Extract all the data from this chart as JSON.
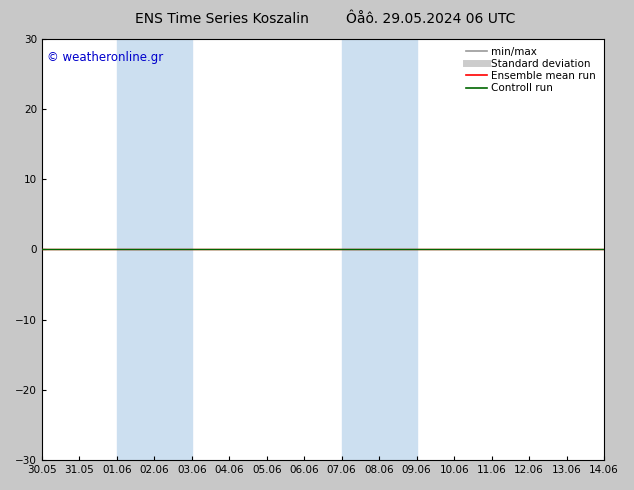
{
  "title_left": "ENS Time Series Koszalin",
  "title_right": "Ôåô. 29.05.2024 06 UTC",
  "watermark": "© weatheronline.gr",
  "watermark_color": "#0000cc",
  "ylim": [
    -30,
    30
  ],
  "yticks": [
    -30,
    -20,
    -10,
    0,
    10,
    20,
    30
  ],
  "x_labels": [
    "30.05",
    "31.05",
    "01.06",
    "02.06",
    "03.06",
    "04.06",
    "05.06",
    "06.06",
    "07.06",
    "08.06",
    "09.06",
    "10.06",
    "11.06",
    "12.06",
    "13.06",
    "14.06"
  ],
  "x_values": [
    0,
    1,
    2,
    3,
    4,
    5,
    6,
    7,
    8,
    9,
    10,
    11,
    12,
    13,
    14,
    15
  ],
  "shaded_regions": [
    {
      "xmin": 2,
      "xmax": 4,
      "color": "#ccdff0"
    },
    {
      "xmin": 8,
      "xmax": 10,
      "color": "#ccdff0"
    }
  ],
  "line_y": 0,
  "line_color_ensemble": "#ff0000",
  "line_color_control": "#006600",
  "fig_bg_color": "#c8c8c8",
  "plot_bg_color": "#ffffff",
  "legend_items": [
    {
      "label": "min/max",
      "color": "#999999",
      "lw": 1.2,
      "style": "solid"
    },
    {
      "label": "Standard deviation",
      "color": "#cccccc",
      "lw": 5,
      "style": "solid"
    },
    {
      "label": "Ensemble mean run",
      "color": "#ff0000",
      "lw": 1.2,
      "style": "solid"
    },
    {
      "label": "Controll run",
      "color": "#006600",
      "lw": 1.2,
      "style": "solid"
    }
  ],
  "font_size_title": 10,
  "font_size_tick": 7.5,
  "font_size_legend": 7.5,
  "font_size_watermark": 8.5
}
